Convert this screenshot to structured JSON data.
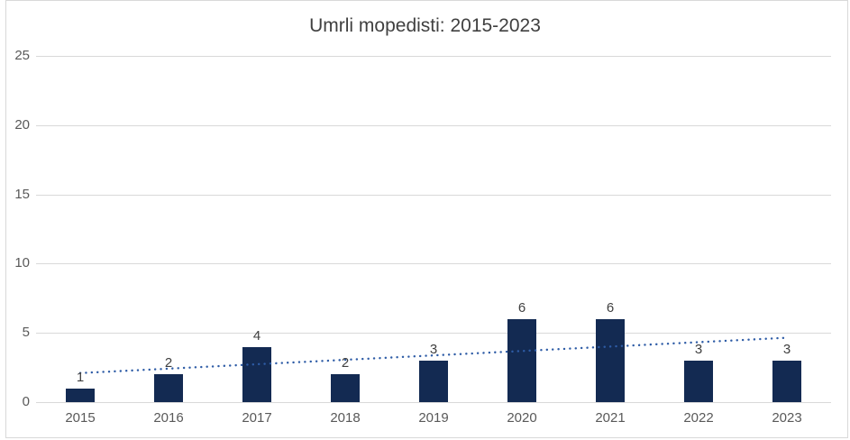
{
  "chart_data": {
    "type": "bar",
    "title": "Umrli mopedisti: 2015-2023",
    "categories": [
      "2015",
      "2016",
      "2017",
      "2018",
      "2019",
      "2020",
      "2021",
      "2022",
      "2023"
    ],
    "values": [
      1,
      2,
      4,
      2,
      3,
      6,
      6,
      3,
      3
    ],
    "xlabel": "",
    "ylabel": "",
    "ylim": [
      0,
      25
    ],
    "yticks": [
      0,
      5,
      10,
      15,
      20,
      25
    ],
    "grid": true,
    "legend": false,
    "data_labels": true,
    "bar_color": "#132a52",
    "gridline_color": "#d9d9d9",
    "frame_color": "#d9d9d9",
    "title_color": "#404040",
    "axis_label_color": "#595959",
    "data_label_color": "#404040",
    "trendline": {
      "type": "linear",
      "style": "dotted",
      "color": "#2e5ca6",
      "start_value": 2.1,
      "end_value": 4.65
    }
  }
}
